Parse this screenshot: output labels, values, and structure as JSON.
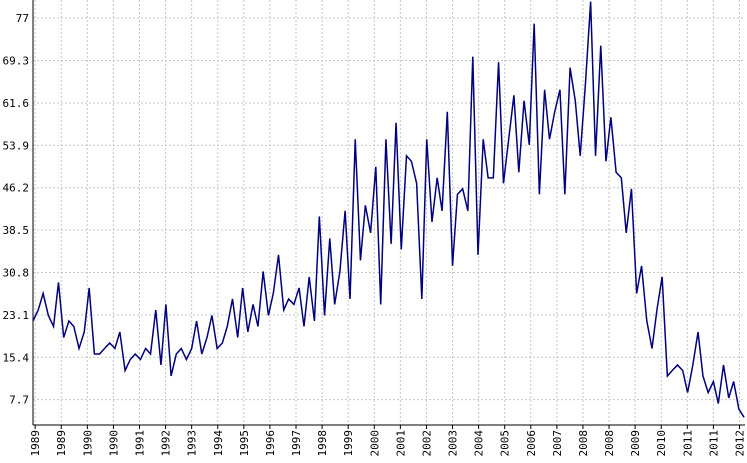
{
  "chart_data": {
    "type": "line",
    "x": [
      1989,
      1989.17,
      1989.33,
      1989.5,
      1989.67,
      1989.83,
      1990,
      1990.17,
      1990.33,
      1990.5,
      1990.67,
      1990.83,
      1991,
      1991.17,
      1991.33,
      1991.5,
      1991.67,
      1991.83,
      1992,
      1992.17,
      1992.33,
      1992.5,
      1992.67,
      1992.83,
      1993,
      1993.17,
      1993.33,
      1993.5,
      1993.67,
      1993.83,
      1994,
      1994.17,
      1994.33,
      1994.5,
      1994.67,
      1994.83,
      1995,
      1995.17,
      1995.33,
      1995.5,
      1995.67,
      1995.83,
      1996,
      1996.17,
      1996.33,
      1996.5,
      1996.67,
      1996.83,
      1997,
      1997.17,
      1997.33,
      1997.5,
      1997.67,
      1997.83,
      1998,
      1998.17,
      1998.33,
      1998.5,
      1998.67,
      1998.83,
      1999,
      1999.17,
      1999.33,
      1999.5,
      1999.67,
      1999.83,
      2000,
      2000.17,
      2000.33,
      2000.5,
      2000.67,
      2000.83,
      2001,
      2001.17,
      2001.33,
      2001.5,
      2001.67,
      2001.83,
      2002,
      2002.17,
      2002.33,
      2002.5,
      2002.67,
      2002.83,
      2003,
      2003.17,
      2003.33,
      2003.5,
      2003.67,
      2003.83,
      2004,
      2004.17,
      2004.33,
      2004.5,
      2004.67,
      2004.83,
      2005,
      2005.17,
      2005.33,
      2005.5,
      2005.67,
      2005.83,
      2006,
      2006.17,
      2006.33,
      2006.5,
      2006.67,
      2006.83,
      2007,
      2007.17,
      2007.33,
      2007.5,
      2007.67,
      2007.83,
      2008,
      2008.17,
      2008.33,
      2008.5,
      2008.67,
      2008.83,
      2009,
      2009.17,
      2009.33,
      2009.5,
      2009.67,
      2009.83,
      2010,
      2010.17,
      2010.33,
      2010.5,
      2010.67,
      2010.83,
      2011,
      2011.17,
      2011.33,
      2011.5,
      2011.67,
      2011.83,
      2012,
      2012.17
    ],
    "series": [
      {
        "color": "#00007f",
        "values": [
          22,
          24,
          27,
          23,
          21,
          29,
          19,
          22,
          21,
          17,
          20,
          28,
          16,
          16,
          17,
          18,
          17,
          20,
          13,
          15,
          16,
          15,
          17,
          16,
          24,
          14,
          25,
          12,
          16,
          17,
          15,
          17,
          22,
          16,
          19,
          23,
          17,
          18,
          21,
          26,
          19,
          28,
          20,
          25,
          21,
          31,
          23,
          27,
          34,
          24,
          26,
          25,
          28,
          21,
          30,
          22,
          41,
          23,
          37,
          25,
          31,
          42,
          26,
          55,
          33,
          43,
          38,
          50,
          25,
          55,
          36,
          58,
          35,
          52,
          51,
          47,
          26,
          55,
          40,
          48,
          42,
          60,
          32,
          45,
          46,
          42,
          70,
          34,
          55,
          48,
          48,
          69,
          47,
          55,
          63,
          49,
          62,
          54,
          76,
          45,
          64,
          55,
          60,
          64,
          45,
          68,
          62,
          52,
          65,
          80,
          52,
          72,
          51,
          59,
          49,
          48,
          38,
          46,
          27,
          32,
          22,
          17,
          24,
          30,
          12,
          13,
          14,
          13,
          9,
          14,
          20,
          12,
          9,
          11,
          7,
          14,
          8,
          11,
          6,
          4.5
        ]
      }
    ],
    "xlim": [
      1989,
      2012.2
    ],
    "ylim": [
      3.1,
      80.3
    ],
    "yticks": [
      7.7,
      15.4,
      23.1,
      30.8,
      38.5,
      46.2,
      53.9,
      61.6,
      69.3,
      77
    ],
    "xticks": [
      {
        "value": 1989.07,
        "label": "1989"
      },
      {
        "value": 1989.92,
        "label": "1989"
      },
      {
        "value": 1990.77,
        "label": "1990"
      },
      {
        "value": 1991.62,
        "label": "1990"
      },
      {
        "value": 1992.47,
        "label": "1991"
      },
      {
        "value": 1993.32,
        "label": "1992"
      },
      {
        "value": 1994.17,
        "label": "1993"
      },
      {
        "value": 1995.02,
        "label": "1994"
      },
      {
        "value": 1995.87,
        "label": "1995"
      },
      {
        "value": 1996.72,
        "label": "1996"
      },
      {
        "value": 1997.57,
        "label": "1997"
      },
      {
        "value": 1998.42,
        "label": "1998"
      },
      {
        "value": 1999.27,
        "label": "1999"
      },
      {
        "value": 2000.12,
        "label": "2000"
      },
      {
        "value": 2000.97,
        "label": "2001"
      },
      {
        "value": 2001.82,
        "label": "2002"
      },
      {
        "value": 2002.67,
        "label": "2003"
      },
      {
        "value": 2003.52,
        "label": "2004"
      },
      {
        "value": 2004.37,
        "label": "2005"
      },
      {
        "value": 2005.22,
        "label": "2006"
      },
      {
        "value": 2006.07,
        "label": "2007"
      },
      {
        "value": 2006.92,
        "label": "2008"
      },
      {
        "value": 2007.77,
        "label": "2008"
      },
      {
        "value": 2008.62,
        "label": "2009"
      },
      {
        "value": 2009.47,
        "label": "2010"
      },
      {
        "value": 2010.32,
        "label": "2011"
      },
      {
        "value": 2011.17,
        "label": "2011"
      },
      {
        "value": 2012.02,
        "label": "2012"
      }
    ],
    "grid": true
  }
}
